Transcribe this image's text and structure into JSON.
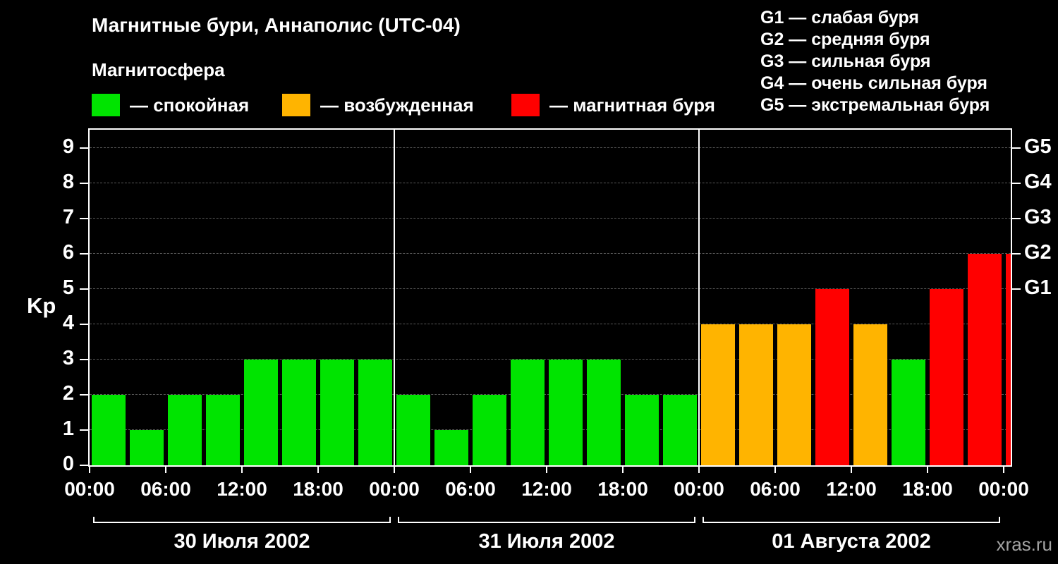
{
  "header": {
    "title": "Магнитные бури, Аннаполис (UTC-04)",
    "subtitle": "Магнитосфера"
  },
  "legend": {
    "items": [
      {
        "key": "quiet",
        "label": "— спокойная",
        "color": "#00e400"
      },
      {
        "key": "excited",
        "label": "— возбужденная",
        "color": "#ffb400"
      },
      {
        "key": "storm",
        "label": "— магнитная буря",
        "color": "#ff0000"
      }
    ]
  },
  "g_legend": {
    "items": [
      "G1 — слабая буря",
      "G2 — средняя буря",
      "G3 — сильная буря",
      "G4 — очень сильная буря",
      "G5 — экстремальная буря"
    ]
  },
  "axes": {
    "y_title": "Kp",
    "y_ticks": [
      0,
      1,
      2,
      3,
      4,
      5,
      6,
      7,
      8,
      9
    ],
    "x_tick_label_hours": [
      "00:00",
      "06:00",
      "12:00",
      "18:00"
    ],
    "right_ticks": [
      {
        "label": "G1",
        "value": 5
      },
      {
        "label": "G2",
        "value": 6
      },
      {
        "label": "G3",
        "value": 7
      },
      {
        "label": "G4",
        "value": 8
      },
      {
        "label": "G5",
        "value": 9
      }
    ]
  },
  "watermark": "xras.ru",
  "chart_data": {
    "type": "bar",
    "title": "Магнитные бури, Аннаполис (UTC-04)",
    "ylabel": "Kp",
    "ylim": [
      0,
      9.5
    ],
    "interval_hours": 3,
    "grid": "horizontal dashed lines at integer Kp values",
    "legend_position": "top-left",
    "days": [
      {
        "label": "30 Июля 2002",
        "values": [
          2,
          1,
          2,
          2,
          3,
          3,
          3,
          3
        ]
      },
      {
        "label": "31 Июля 2002",
        "values": [
          2,
          1,
          2,
          3,
          3,
          3,
          2,
          2
        ]
      },
      {
        "label": "01 Августа 2002",
        "values": [
          4,
          4,
          4,
          5,
          4,
          3,
          5,
          6
        ]
      }
    ],
    "next_period_partial_value": 6,
    "color_scale": {
      "quiet_max_kp": 3,
      "excited_max_kp": 4,
      "colors": {
        "quiet": "#00e400",
        "excited": "#ffb400",
        "storm": "#ff0000"
      }
    }
  }
}
